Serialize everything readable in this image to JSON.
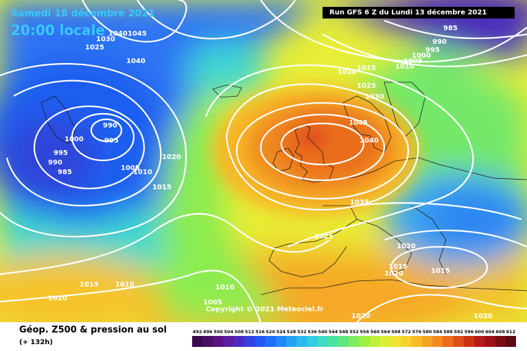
{
  "header": {
    "date": "Samedi 18 décembre 2021",
    "time": "20:00 locale",
    "run": "Run GFS 6 Z du Lundi 13 décembre 2021"
  },
  "copyright": "Copyright © 2021 Meteociel.fr",
  "legend": {
    "title": "Géop. Z500 & pression au sol",
    "subtitle": "(+ 132h)",
    "ticks": [
      "492",
      "496",
      "500",
      "504",
      "508",
      "512",
      "516",
      "520",
      "524",
      "528",
      "532",
      "536",
      "540",
      "544",
      "548",
      "552",
      "556",
      "560",
      "564",
      "568",
      "572",
      "576",
      "580",
      "584",
      "588",
      "592",
      "596",
      "600",
      "604",
      "608",
      "612"
    ],
    "colors": [
      "#3a0a4a",
      "#4a0f63",
      "#5a1380",
      "#5b1ea3",
      "#4b2bc4",
      "#3540e0",
      "#2257f2",
      "#1c70f8",
      "#1f88f8",
      "#24a0f5",
      "#2cb9ee",
      "#35cde0",
      "#3edcc4",
      "#4be3a0",
      "#62e87c",
      "#80ec5c",
      "#a0ef45",
      "#c0f03a",
      "#dcee34",
      "#f0e530",
      "#f8d22c",
      "#f9bc28",
      "#f7a424",
      "#f28a20",
      "#ea6c1c",
      "#de4e18",
      "#cc3214",
      "#b81c16",
      "#9c1218",
      "#7c0c14",
      "#5a0a10"
    ]
  },
  "pressure_labels": [
    {
      "text": "1040"
    },
    {
      "text": "1045"
    },
    {
      "text": "1030"
    },
    {
      "text": "1025"
    },
    {
      "text": "1040"
    },
    {
      "text": "985"
    },
    {
      "text": "990"
    },
    {
      "text": "995"
    },
    {
      "text": "1000"
    },
    {
      "text": "1005"
    },
    {
      "text": "1010"
    },
    {
      "text": "1015"
    },
    {
      "text": "1020"
    },
    {
      "text": "1025"
    },
    {
      "text": "1030"
    },
    {
      "text": "1045"
    },
    {
      "text": "1040"
    },
    {
      "text": "990"
    },
    {
      "text": "995"
    },
    {
      "text": "1000"
    },
    {
      "text": "995"
    },
    {
      "text": "990"
    },
    {
      "text": "985"
    },
    {
      "text": "1005"
    },
    {
      "text": "1010"
    },
    {
      "text": "1020"
    },
    {
      "text": "1015"
    },
    {
      "text": "1035"
    },
    {
      "text": "1025"
    },
    {
      "text": "1020"
    },
    {
      "text": "1015"
    },
    {
      "text": "1015"
    },
    {
      "text": "1015"
    },
    {
      "text": "1010"
    },
    {
      "text": "1020"
    },
    {
      "text": "1010"
    },
    {
      "text": "1005"
    },
    {
      "text": "1020"
    },
    {
      "text": "1020"
    },
    {
      "text": "1020"
    }
  ]
}
